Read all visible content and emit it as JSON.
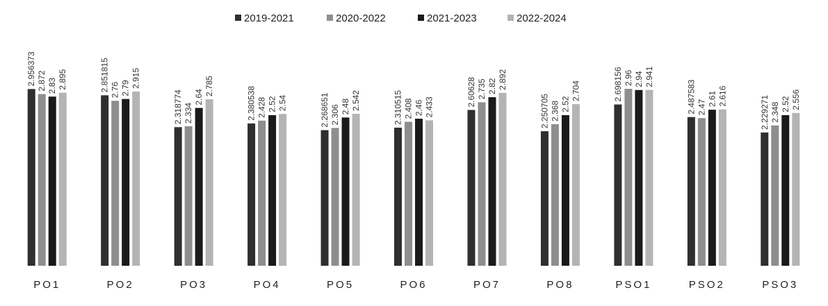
{
  "chart_data": {
    "type": "bar",
    "title": "",
    "xlabel": "",
    "ylabel": "",
    "ylim": [
      0,
      3
    ],
    "grid": false,
    "legend": "top",
    "categories": [
      "PO1",
      "PO2",
      "PO3",
      "PO4",
      "PO5",
      "PO6",
      "PO7",
      "PO8",
      "PSO1",
      "PSO2",
      "PSO3"
    ],
    "series": [
      {
        "name": "2019-2021",
        "color": "#2f2f2f",
        "values": [
          2.956373,
          2.851815,
          2.318774,
          2.380538,
          2.268651,
          2.310515,
          2.60628,
          2.250705,
          2.698156,
          2.487583,
          2.229271
        ],
        "labels": [
          "2.956373",
          "2.851815",
          "2.318774",
          "2.380538",
          "2.268651",
          "2.310515",
          "2.60628",
          "2.250705",
          "2.698156",
          "2.487583",
          "2.229271"
        ]
      },
      {
        "name": "2020-2022",
        "color": "#8e8e8e",
        "values": [
          2.872,
          2.76,
          2.334,
          2.428,
          2.306,
          2.408,
          2.735,
          2.368,
          2.96,
          2.47,
          2.348
        ],
        "labels": [
          "2.872",
          "2.76",
          "2.334",
          "2.428",
          "2.306",
          "2.408",
          "2.735",
          "2.368",
          "2.96",
          "2.47",
          "2.348"
        ]
      },
      {
        "name": "2021-2023",
        "color": "#1a1a1a",
        "values": [
          2.83,
          2.79,
          2.64,
          2.52,
          2.48,
          2.46,
          2.82,
          2.52,
          2.94,
          2.61,
          2.52
        ],
        "labels": [
          "2.83",
          "2.79",
          "2.64",
          "2.52",
          "2.48",
          "2.46",
          "2.82",
          "2.52",
          "2.94",
          "2.61",
          "2.52"
        ]
      },
      {
        "name": "2022-2024",
        "color": "#b4b4b4",
        "values": [
          2.895,
          2.915,
          2.785,
          2.54,
          2.542,
          2.433,
          2.892,
          2.704,
          2.941,
          2.616,
          2.556
        ],
        "labels": [
          "2.895",
          "2.915",
          "2.785",
          "2.54",
          "2.542",
          "2.433",
          "2.892",
          "2.704",
          "2.941",
          "2.616",
          "2.556"
        ]
      }
    ]
  }
}
